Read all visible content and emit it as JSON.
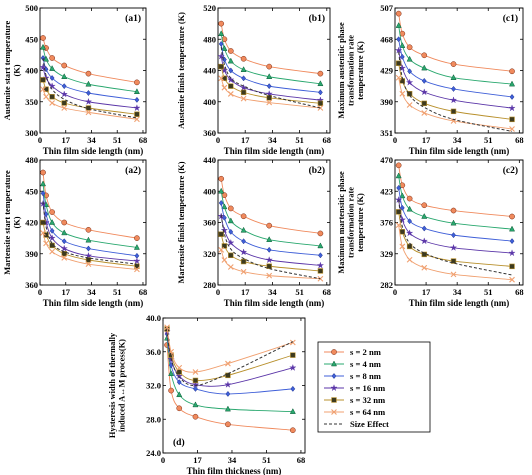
{
  "legend": [
    {
      "name": "s = 2 nm",
      "color": "#f08a5d",
      "marker": "circle"
    },
    {
      "name": "s = 4 nm",
      "color": "#2aa86f",
      "marker": "triangle"
    },
    {
      "name": "s = 8 nm",
      "color": "#3f5fd8",
      "marker": "diamond"
    },
    {
      "name": "s = 16 nm",
      "color": "#5b36a8",
      "marker": "star"
    },
    {
      "name": "s = 32 nm",
      "color": "#b8902c",
      "marker": "square"
    },
    {
      "name": "s = 64 nm",
      "color": "#f0a070",
      "marker": "x"
    },
    {
      "name": "Size Effect",
      "color": "#333333",
      "marker": "dash"
    }
  ],
  "chart_data": [
    {
      "type": "line",
      "panel_label": "(a1)",
      "ylabel": [
        "Austenite start temperature",
        "(K)"
      ],
      "xlabel": "Thin film side length (nm)",
      "xlim": [
        0,
        70
      ],
      "ylim": [
        300,
        500
      ],
      "xticks": [
        0,
        17,
        34,
        51,
        68
      ],
      "yticks": [
        300,
        350,
        400,
        450,
        500
      ],
      "x": [
        2,
        4,
        8,
        16,
        32,
        64
      ],
      "series": [
        {
          "name": "s = 2 nm",
          "values": [
            452,
            436,
            420,
            408,
            395,
            381
          ]
        },
        {
          "name": "s = 4 nm",
          "values": [
            437,
            418,
            403,
            390,
            378,
            366
          ]
        },
        {
          "name": "s = 8 nm",
          "values": [
            420,
            402,
            388,
            375,
            364,
            353
          ]
        },
        {
          "name": "s = 16 nm",
          "values": [
            405,
            388,
            375,
            362,
            350,
            340
          ]
        },
        {
          "name": "s = 32 nm",
          "values": [
            385,
            370,
            358,
            348,
            340,
            330
          ]
        },
        {
          "name": "s = 64 nm",
          "values": [
            370,
            358,
            348,
            340,
            333,
            322
          ]
        },
        {
          "name": "Size Effect",
          "values": [
            420,
            392,
            370,
            354,
            339,
            324
          ]
        }
      ]
    },
    {
      "type": "line",
      "panel_label": "(b1)",
      "ylabel": [
        "Austenite finish temperature (K)"
      ],
      "xlabel": "Thin film side length (nm)",
      "xlim": [
        0,
        70
      ],
      "ylim": [
        360,
        520
      ],
      "xticks": [
        0,
        17,
        34,
        51,
        68
      ],
      "yticks": [
        360,
        400,
        440,
        480,
        520
      ],
      "x": [
        2,
        4,
        8,
        16,
        32,
        64
      ],
      "series": [
        {
          "name": "s = 2 nm",
          "values": [
            500,
            480,
            465,
            455,
            445,
            436
          ]
        },
        {
          "name": "s = 4 nm",
          "values": [
            487,
            468,
            452,
            441,
            432,
            423
          ]
        },
        {
          "name": "s = 8 nm",
          "values": [
            474,
            454,
            440,
            430,
            420,
            412
          ]
        },
        {
          "name": "s = 16 nm",
          "values": [
            458,
            440,
            428,
            418,
            410,
            402
          ]
        },
        {
          "name": "s = 32 nm",
          "values": [
            445,
            430,
            420,
            412,
            405,
            398
          ]
        },
        {
          "name": "s = 64 nm",
          "values": [
            430,
            418,
            410,
            404,
            399,
            392
          ]
        },
        {
          "name": "Size Effect",
          "values": [
            470,
            448,
            430,
            420,
            408,
            392
          ]
        }
      ]
    },
    {
      "type": "line",
      "panel_label": "(c1)",
      "ylabel": [
        "Maximum austenitic phase",
        "transformation rate",
        "temperature (K)"
      ],
      "xlabel": "Thin film side length (nm)",
      "xlim": [
        0,
        70
      ],
      "ylim": [
        351,
        507
      ],
      "xticks": [
        0,
        17,
        34,
        51,
        68
      ],
      "yticks": [
        351,
        390,
        429,
        468,
        507
      ],
      "x": [
        2,
        4,
        8,
        16,
        32,
        64
      ],
      "series": [
        {
          "name": "s = 2 nm",
          "values": [
            500,
            475,
            458,
            448,
            437,
            428
          ]
        },
        {
          "name": "s = 4 nm",
          "values": [
            485,
            460,
            443,
            432,
            420,
            412
          ]
        },
        {
          "name": "s = 8 nm",
          "values": [
            468,
            446,
            428,
            416,
            406,
            396
          ]
        },
        {
          "name": "s = 16 nm",
          "values": [
            454,
            432,
            414,
            402,
            392,
            382
          ]
        },
        {
          "name": "s = 32 nm",
          "values": [
            438,
            416,
            400,
            388,
            378,
            368
          ]
        },
        {
          "name": "s = 64 nm",
          "values": [
            420,
            400,
            386,
            376,
            366,
            356
          ]
        },
        {
          "name": "Size Effect",
          "values": [
            452,
            420,
            398,
            383,
            368,
            353
          ]
        }
      ]
    },
    {
      "type": "line",
      "panel_label": "(a2)",
      "ylabel": [
        "Martensite start temperature",
        "(K)"
      ],
      "xlabel": "Thin film side length (nm)",
      "xlim": [
        0,
        70
      ],
      "ylim": [
        360,
        480
      ],
      "xticks": [
        0,
        17,
        34,
        51,
        68
      ],
      "yticks": [
        360,
        390,
        420,
        450,
        480
      ],
      "x": [
        2,
        4,
        8,
        16,
        32,
        64
      ],
      "series": [
        {
          "name": "s = 2 nm",
          "values": [
            468,
            446,
            430,
            420,
            413,
            405
          ]
        },
        {
          "name": "s = 4 nm",
          "values": [
            457,
            437,
            420,
            410,
            403,
            396
          ]
        },
        {
          "name": "s = 8 nm",
          "values": [
            448,
            428,
            412,
            402,
            395,
            388
          ]
        },
        {
          "name": "s = 16 nm",
          "values": [
            438,
            420,
            405,
            395,
            388,
            383
          ]
        },
        {
          "name": "s = 32 nm",
          "values": [
            420,
            408,
            398,
            390,
            384,
            378
          ]
        },
        {
          "name": "s = 64 nm",
          "values": [
            410,
            400,
            392,
            386,
            380,
            375
          ]
        },
        {
          "name": "Size Effect",
          "values": [
            440,
            416,
            400,
            392,
            386,
            380
          ]
        }
      ]
    },
    {
      "type": "line",
      "panel_label": "(b2)",
      "ylabel": [
        "Martensite finish temperature (K)"
      ],
      "xlabel": "Thin film side length (nm)",
      "xlim": [
        0,
        70
      ],
      "ylim": [
        280,
        440
      ],
      "xticks": [
        0,
        17,
        34,
        51,
        68
      ],
      "yticks": [
        280,
        320,
        360,
        400,
        440
      ],
      "x": [
        2,
        4,
        8,
        16,
        32,
        64
      ],
      "series": [
        {
          "name": "s = 2 nm",
          "values": [
            416,
            395,
            378,
            368,
            356,
            346
          ]
        },
        {
          "name": "s = 4 nm",
          "values": [
            400,
            380,
            362,
            350,
            338,
            330
          ]
        },
        {
          "name": "s = 8 nm",
          "values": [
            385,
            366,
            348,
            336,
            325,
            318
          ]
        },
        {
          "name": "s = 16 nm",
          "values": [
            368,
            350,
            334,
            322,
            312,
            305
          ]
        },
        {
          "name": "s = 32 nm",
          "values": [
            345,
            330,
            318,
            310,
            304,
            298
          ]
        },
        {
          "name": "s = 64 nm",
          "values": [
            325,
            312,
            303,
            297,
            292,
            288
          ]
        },
        {
          "name": "Size Effect",
          "values": [
            370,
            345,
            326,
            314,
            301,
            288
          ]
        }
      ]
    },
    {
      "type": "line",
      "panel_label": "(c2)",
      "ylabel": [
        "Maximum martensitic phase",
        "transformation rate",
        "temperature (K)"
      ],
      "xlabel": "Thin film side length (nm)",
      "xlim": [
        0,
        70
      ],
      "ylim": [
        282,
        470
      ],
      "xticks": [
        0,
        17,
        34,
        51,
        68
      ],
      "yticks": [
        282,
        329,
        376,
        423,
        470
      ],
      "x": [
        2,
        4,
        8,
        16,
        32,
        64
      ],
      "series": [
        {
          "name": "s = 2 nm",
          "values": [
            462,
            432,
            412,
            402,
            394,
            385
          ]
        },
        {
          "name": "s = 4 nm",
          "values": [
            446,
            416,
            396,
            385,
            375,
            366
          ]
        },
        {
          "name": "s = 8 nm",
          "values": [
            428,
            398,
            378,
            367,
            357,
            348
          ]
        },
        {
          "name": "s = 16 nm",
          "values": [
            410,
            380,
            360,
            348,
            338,
            330
          ]
        },
        {
          "name": "s = 32 nm",
          "values": [
            392,
            362,
            340,
            328,
            318,
            310
          ]
        },
        {
          "name": "s = 64 nm",
          "values": [
            372,
            340,
            320,
            308,
            298,
            290
          ]
        },
        {
          "name": "Size Effect",
          "values": [
            410,
            370,
            345,
            330,
            315,
            297
          ]
        }
      ]
    },
    {
      "type": "line",
      "panel_label": "(d)",
      "ylabel": [
        "Hysteresis width of thermally",
        "induced A↔M process(K)"
      ],
      "xlabel": "Thin film thickness (nm)",
      "xlim": [
        0,
        70
      ],
      "ylim": [
        24,
        40
      ],
      "xticks": [
        0,
        17,
        34,
        51,
        68
      ],
      "yticks": [
        24.0,
        28.0,
        32.0,
        36.0,
        40.0
      ],
      "x": [
        2,
        4,
        8,
        16,
        32,
        64
      ],
      "series": [
        {
          "name": "s = 2 nm",
          "values": [
            36.8,
            31.4,
            29.3,
            28.3,
            27.4,
            26.7
          ]
        },
        {
          "name": "s = 4 nm",
          "values": [
            37.6,
            33.4,
            30.9,
            29.7,
            29.2,
            28.9
          ]
        },
        {
          "name": "s = 8 nm",
          "values": [
            38.1,
            34.4,
            32.4,
            31.6,
            31.0,
            31.6
          ]
        },
        {
          "name": "s = 16 nm",
          "values": [
            38.4,
            35.1,
            33.1,
            32.1,
            32.1,
            34.1
          ]
        },
        {
          "name": "s = 32 nm",
          "values": [
            38.7,
            35.6,
            33.6,
            32.6,
            33.2,
            35.6
          ]
        },
        {
          "name": "s = 64 nm",
          "values": [
            38.9,
            36.0,
            34.1,
            33.6,
            34.6,
            37.1
          ]
        },
        {
          "name": "Size Effect",
          "values": [
            38.2,
            35.2,
            33.0,
            32.0,
            33.4,
            37.2
          ]
        }
      ]
    }
  ]
}
